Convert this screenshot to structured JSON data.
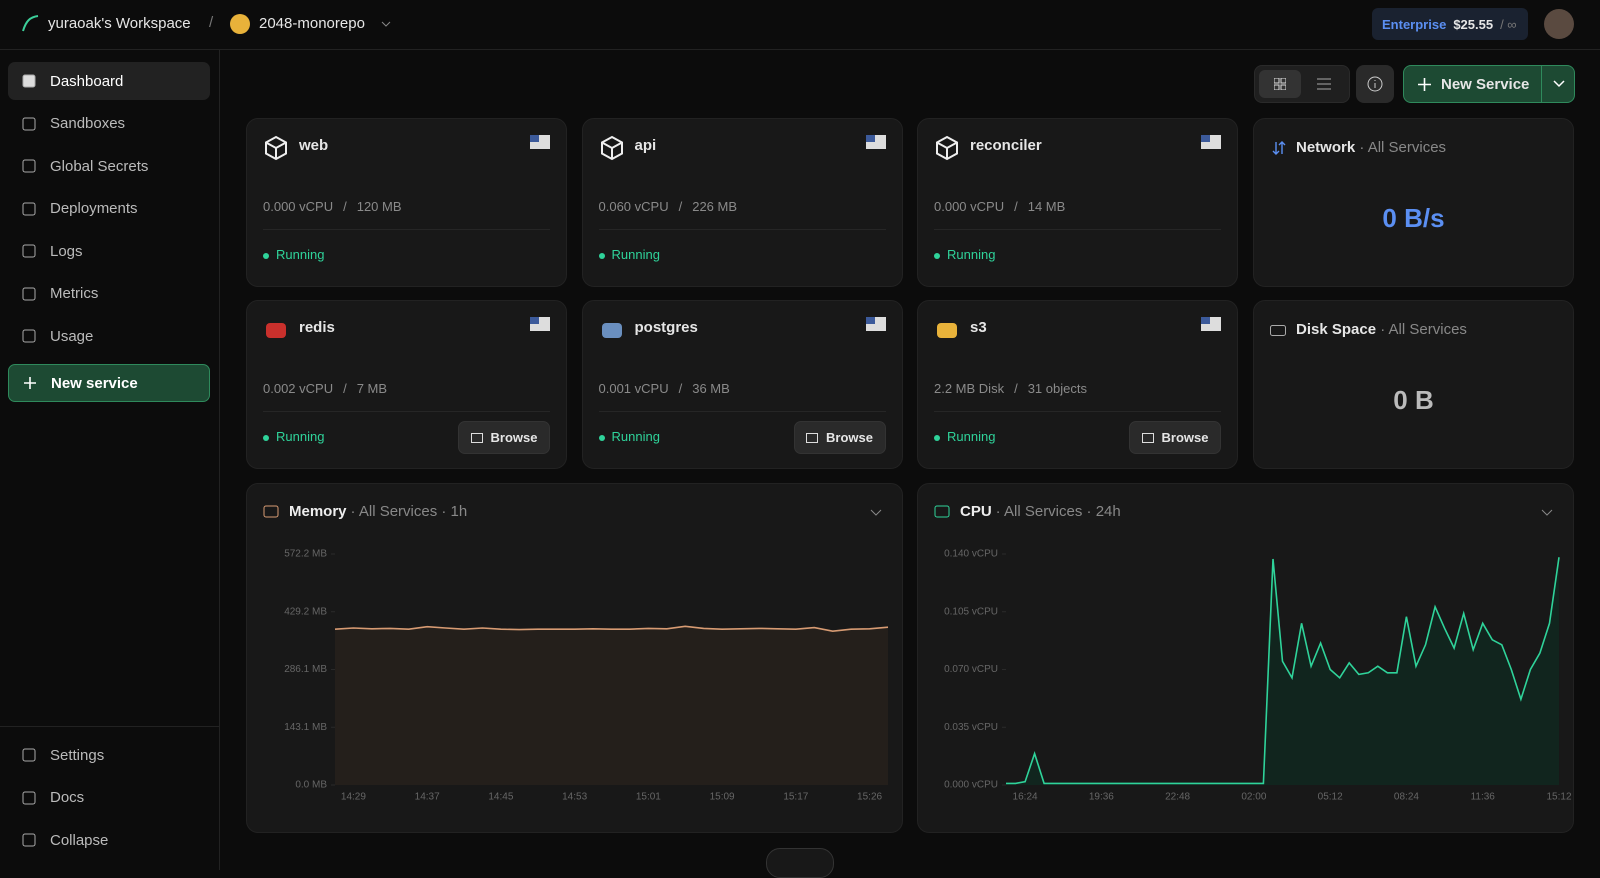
{
  "separator": "/",
  "header": {
    "workspace": "yuraoak's Workspace",
    "project": "2048-monorepo",
    "plan": "Enterprise",
    "balance": "$25.55",
    "limit": "/ ∞"
  },
  "sidebar": {
    "nav": [
      "Dashboard",
      "Sandboxes",
      "Global Secrets",
      "Deployments",
      "Logs",
      "Metrics",
      "Usage"
    ],
    "new_service": "New service",
    "bottom": [
      "Settings",
      "Docs",
      "Collapse"
    ]
  },
  "toolbar": {
    "new_service": "New Service"
  },
  "services": [
    {
      "name": "web",
      "usage": "0.000 vCPU",
      "size": "120 MB",
      "status": "Running"
    },
    {
      "name": "api",
      "usage": "0.060 vCPU",
      "size": "226 MB",
      "status": "Running"
    },
    {
      "name": "reconciler",
      "usage": "0.000 vCPU",
      "size": "14 MB",
      "status": "Running"
    },
    {
      "name": "redis",
      "usage": "0.002 vCPU",
      "size": "7 MB",
      "status": "Running",
      "action": "Browse"
    },
    {
      "name": "postgres",
      "usage": "0.001 vCPU",
      "size": "36 MB",
      "status": "Running",
      "action": "Browse"
    },
    {
      "name": "s3",
      "usage": "2.2 MB Disk",
      "size": "31 objects",
      "status": "Running",
      "action": "Browse"
    }
  ],
  "network": {
    "title": "Network",
    "meta": "· All Services",
    "value": "0 B/s"
  },
  "disk": {
    "title": "Disk Space",
    "meta": "· All Services",
    "value": "0 B"
  },
  "chart_data": [
    {
      "type": "line",
      "title": "Memory",
      "subtitle": "· All Services · 1h",
      "categories": [
        null,
        "14:29",
        null,
        null,
        null,
        "14:37",
        null,
        null,
        null,
        "14:45",
        null,
        null,
        null,
        "14:53",
        null,
        null,
        null,
        "15:01",
        null,
        null,
        null,
        "15:09",
        null,
        null,
        null,
        "15:17",
        null,
        null,
        null,
        "15:26",
        null
      ],
      "series": [
        {
          "name": "Memory",
          "color": "#d79b73",
          "values": [
            386,
            389,
            387,
            388,
            386,
            392,
            389,
            386,
            389,
            386,
            385,
            386,
            386,
            386,
            387,
            386,
            386,
            388,
            387,
            393,
            388,
            386,
            387,
            388,
            387,
            386,
            390,
            381,
            386,
            387,
            391
          ]
        }
      ],
      "ylim": [
        0,
        572.2
      ],
      "yticks": [
        {
          "value": 0,
          "label": "0.0 MB"
        },
        {
          "value": 143.1,
          "label": "143.1 MB"
        },
        {
          "value": 286.1,
          "label": "286.1 MB"
        },
        {
          "value": 429.2,
          "label": "429.2 MB"
        },
        {
          "value": 572.2,
          "label": "572.2 MB"
        }
      ],
      "area_color": "#241f1b"
    },
    {
      "type": "line",
      "title": "CPU",
      "subtitle": "· All Services · 24h",
      "categories": [
        null,
        null,
        "16:24",
        null,
        null,
        null,
        null,
        null,
        null,
        null,
        "19:36",
        null,
        null,
        null,
        null,
        null,
        null,
        null,
        "22:48",
        null,
        null,
        null,
        null,
        null,
        null,
        null,
        "02:00",
        null,
        null,
        null,
        null,
        null,
        null,
        null,
        "05:12",
        null,
        null,
        null,
        null,
        null,
        null,
        null,
        "08:24",
        null,
        null,
        null,
        null,
        null,
        null,
        null,
        "11:36",
        null,
        null,
        null,
        null,
        null,
        null,
        null,
        "15:12"
      ],
      "series": [
        {
          "name": "CPU",
          "color": "#2fd39a",
          "values": [
            0.001,
            0.001,
            0.002,
            0.019,
            0.001,
            0.001,
            0.001,
            0.001,
            0.001,
            0.001,
            0.001,
            0.001,
            0.001,
            0.001,
            0.001,
            0.001,
            0.001,
            0.001,
            0.001,
            0.001,
            0.001,
            0.001,
            0.001,
            0.001,
            0.001,
            0.001,
            0.001,
            0.001,
            0.137,
            0.075,
            0.065,
            0.098,
            0.072,
            0.086,
            0.07,
            0.065,
            0.074,
            0.067,
            0.068,
            0.072,
            0.068,
            0.068,
            0.102,
            0.072,
            0.085,
            0.108,
            0.095,
            0.083,
            0.104,
            0.082,
            0.098,
            0.088,
            0.085,
            0.07,
            0.052,
            0.07,
            0.08,
            0.098,
            0.138
          ]
        }
      ],
      "ylim": [
        0,
        0.14
      ],
      "yticks": [
        {
          "value": 0,
          "label": "0.000 vCPU"
        },
        {
          "value": 0.035,
          "label": "0.035 vCPU"
        },
        {
          "value": 0.07,
          "label": "0.070 vCPU"
        },
        {
          "value": 0.105,
          "label": "0.105 vCPU"
        },
        {
          "value": 0.14,
          "label": "0.140 vCPU"
        }
      ],
      "area_color": "#11251e"
    }
  ]
}
